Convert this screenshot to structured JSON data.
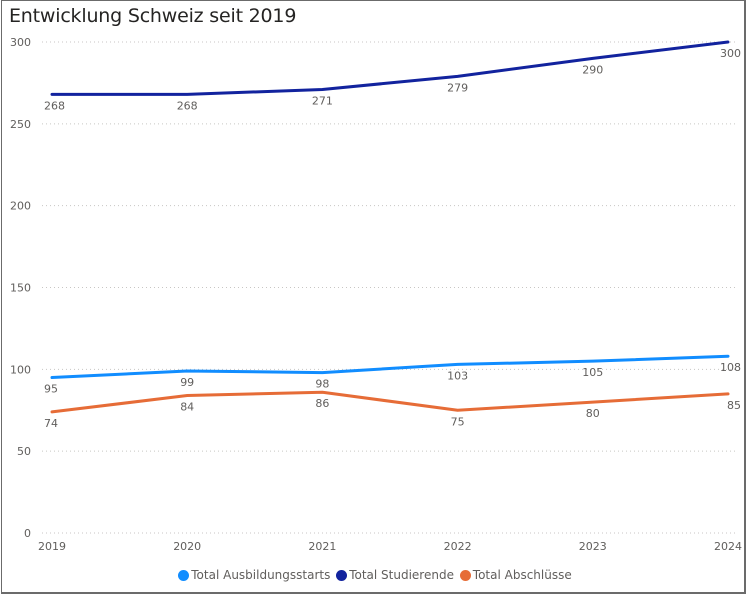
{
  "chart_data": {
    "type": "line",
    "title": "Entwicklung Schweiz seit 2019",
    "xlabel": "",
    "ylabel": "",
    "x": [
      "2019",
      "2020",
      "2021",
      "2022",
      "2023",
      "2024"
    ],
    "ylim": [
      0,
      300
    ],
    "yticks": [
      0,
      50,
      100,
      150,
      200,
      250,
      300
    ],
    "grid": true,
    "legend_position": "bottom-center",
    "series": [
      {
        "name": "Total Ausbildungsstarts",
        "color": "#118DFF",
        "values": [
          95,
          99,
          98,
          103,
          105,
          108
        ]
      },
      {
        "name": "Total Studierende",
        "color": "#12239E",
        "values": [
          268,
          268,
          271,
          279,
          290,
          300
        ]
      },
      {
        "name": "Total Abschlüsse",
        "color": "#E66C37",
        "values": [
          74,
          84,
          86,
          75,
          80,
          85
        ]
      }
    ]
  }
}
